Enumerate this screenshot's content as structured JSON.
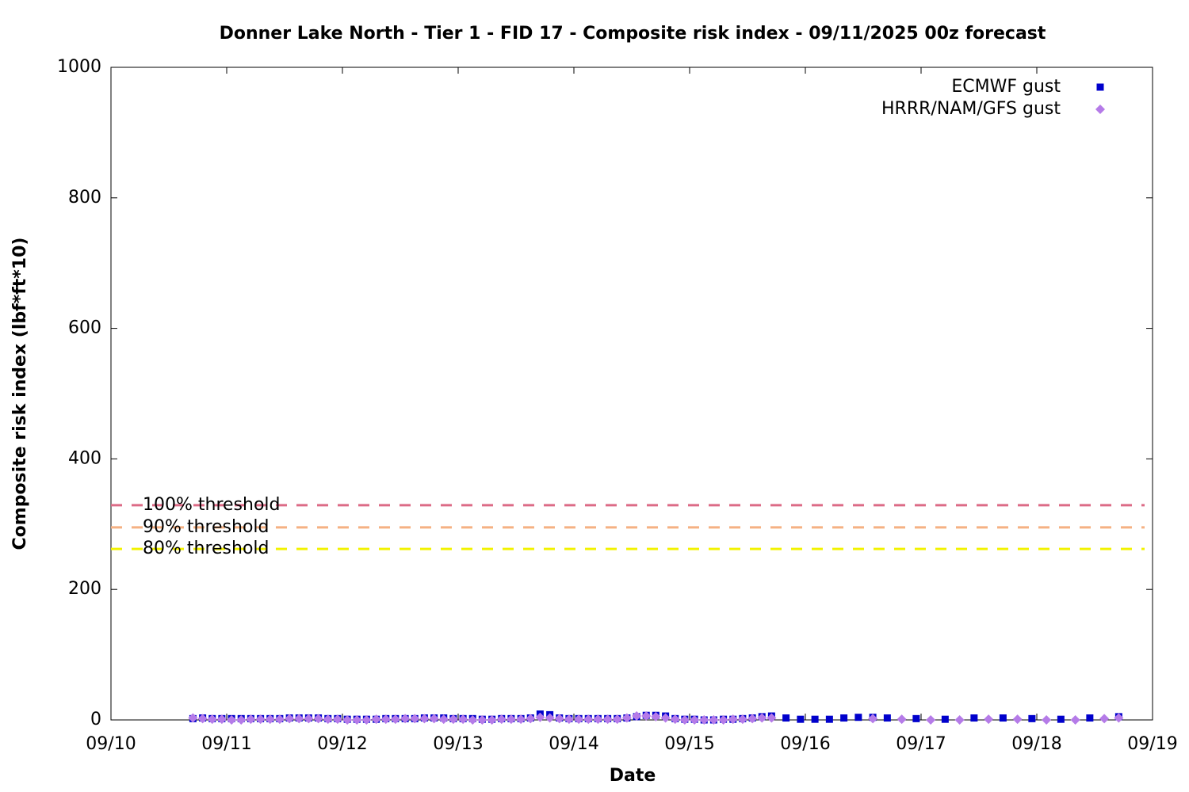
{
  "chart_data": {
    "type": "scatter",
    "title": "Donner Lake North - Tier 1 - FID 17 - Composite risk index - 09/11/2025 00z forecast",
    "x_label": "Date",
    "y_label": "Composite risk index (lbf*ft*10)",
    "xlim": [
      10,
      19
    ],
    "xticks": [
      {
        "value": 10,
        "label": "09/10"
      },
      {
        "value": 11,
        "label": "09/11"
      },
      {
        "value": 12,
        "label": "09/12"
      },
      {
        "value": 13,
        "label": "09/13"
      },
      {
        "value": 14,
        "label": "09/14"
      },
      {
        "value": 15,
        "label": "09/15"
      },
      {
        "value": 16,
        "label": "09/16"
      },
      {
        "value": 17,
        "label": "09/17"
      },
      {
        "value": 18,
        "label": "09/18"
      },
      {
        "value": 19,
        "label": "09/19"
      }
    ],
    "ylim": [
      0,
      1000
    ],
    "yticks": [
      0,
      200,
      400,
      600,
      800,
      1000
    ],
    "legend": "top-right",
    "thresholds": [
      {
        "label": "100% threshold",
        "value": 329,
        "color": "#dc6b86"
      },
      {
        "label": "90% threshold",
        "value": 295,
        "color": "#f5b183"
      },
      {
        "label": "80% threshold",
        "value": 262,
        "color": "#f2f200"
      }
    ],
    "series": [
      {
        "name": "ECMWF gust",
        "color": "#0000cc",
        "marker": "square",
        "x": [
          10.708,
          10.792,
          10.875,
          10.958,
          11.042,
          11.125,
          11.208,
          11.292,
          11.375,
          11.458,
          11.542,
          11.625,
          11.708,
          11.792,
          11.875,
          11.958,
          12.042,
          12.125,
          12.208,
          12.292,
          12.375,
          12.458,
          12.542,
          12.625,
          12.708,
          12.792,
          12.875,
          12.958,
          13.042,
          13.125,
          13.208,
          13.292,
          13.375,
          13.458,
          13.542,
          13.625,
          13.708,
          13.792,
          13.875,
          13.958,
          14.042,
          14.125,
          14.208,
          14.292,
          14.375,
          14.458,
          14.542,
          14.625,
          14.708,
          14.792,
          14.875,
          14.958,
          15.042,
          15.125,
          15.208,
          15.292,
          15.375,
          15.458,
          15.542,
          15.625,
          15.708,
          15.833,
          15.958,
          16.083,
          16.208,
          16.333,
          16.458,
          16.583,
          16.708,
          16.958,
          17.208,
          17.458,
          17.708,
          17.958,
          18.208,
          18.458,
          18.708
        ],
        "values": [
          2,
          3,
          2,
          2,
          2,
          2,
          2,
          2,
          2,
          2,
          3,
          3,
          3,
          3,
          2,
          2,
          1,
          1,
          1,
          1,
          2,
          2,
          2,
          2,
          3,
          3,
          3,
          2,
          2,
          2,
          1,
          1,
          2,
          2,
          2,
          3,
          9,
          8,
          3,
          2,
          2,
          2,
          2,
          2,
          2,
          3,
          5,
          7,
          7,
          6,
          2,
          1,
          1,
          0,
          0,
          1,
          1,
          2,
          3,
          5,
          6,
          3,
          1,
          1,
          1,
          3,
          4,
          4,
          3,
          2,
          1,
          3,
          3,
          2,
          1,
          3,
          5
        ]
      },
      {
        "name": "HRRR/NAM/GFS gust",
        "color": "#b57be8",
        "marker": "diamond",
        "x": [
          10.708,
          10.792,
          10.875,
          10.958,
          11.042,
          11.125,
          11.208,
          11.292,
          11.375,
          11.458,
          11.542,
          11.625,
          11.708,
          11.792,
          11.875,
          11.958,
          12.042,
          12.125,
          12.208,
          12.292,
          12.375,
          12.458,
          12.542,
          12.625,
          12.708,
          12.792,
          12.875,
          12.958,
          13.042,
          13.125,
          13.208,
          13.292,
          13.375,
          13.458,
          13.542,
          13.625,
          13.708,
          13.792,
          13.875,
          13.958,
          14.042,
          14.125,
          14.208,
          14.292,
          14.375,
          14.458,
          14.542,
          14.625,
          14.708,
          14.792,
          14.875,
          14.958,
          15.042,
          15.125,
          15.208,
          15.292,
          15.375,
          15.458,
          15.542,
          15.625,
          15.708,
          16.583,
          16.833,
          17.083,
          17.333,
          17.583,
          17.833,
          18.083,
          18.333,
          18.583,
          18.708
        ],
        "values": [
          3,
          2,
          1,
          1,
          0,
          0,
          1,
          1,
          1,
          1,
          2,
          2,
          2,
          2,
          1,
          1,
          0,
          0,
          0,
          1,
          1,
          1,
          2,
          2,
          2,
          2,
          1,
          1,
          1,
          0,
          0,
          0,
          1,
          1,
          1,
          2,
          4,
          3,
          2,
          1,
          1,
          1,
          1,
          1,
          1,
          3,
          6,
          6,
          5,
          3,
          1,
          0,
          0,
          0,
          0,
          0,
          1,
          1,
          2,
          3,
          3,
          2,
          1,
          0,
          0,
          1,
          1,
          0,
          0,
          2,
          3
        ]
      }
    ]
  }
}
